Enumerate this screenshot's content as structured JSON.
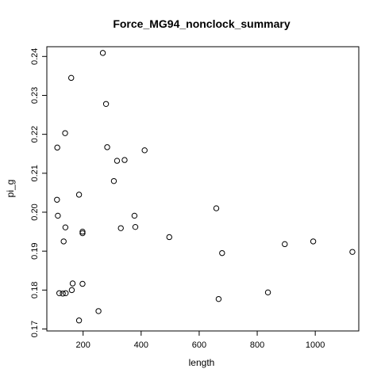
{
  "chart_data": {
    "type": "scatter",
    "title": "Force_MG94_nonclock_summary",
    "xlabel": "length",
    "ylabel": "pi_g",
    "xlim": [
      75,
      1150
    ],
    "ylim": [
      0.1695,
      0.2425
    ],
    "xticks": [
      200,
      400,
      600,
      800,
      1000
    ],
    "yticks": [
      0.17,
      0.18,
      0.19,
      0.2,
      0.21,
      0.22,
      0.23,
      0.24
    ],
    "ytick_labels": [
      "0.17",
      "0.18",
      "0.19",
      "0.20",
      "0.21",
      "0.22",
      "0.23",
      "0.24"
    ],
    "grid": false,
    "legend": "none",
    "colors": {
      "point_stroke": "#000000",
      "axis": "#000000"
    },
    "points": [
      {
        "x": 268,
        "y": 0.2409
      },
      {
        "x": 159,
        "y": 0.2345
      },
      {
        "x": 279,
        "y": 0.2278
      },
      {
        "x": 138,
        "y": 0.2203
      },
      {
        "x": 111,
        "y": 0.2166
      },
      {
        "x": 283,
        "y": 0.2167
      },
      {
        "x": 412,
        "y": 0.2159
      },
      {
        "x": 317,
        "y": 0.2132
      },
      {
        "x": 343,
        "y": 0.2134
      },
      {
        "x": 306,
        "y": 0.208
      },
      {
        "x": 110,
        "y": 0.2032
      },
      {
        "x": 186,
        "y": 0.2045
      },
      {
        "x": 113,
        "y": 0.1991
      },
      {
        "x": 377,
        "y": 0.1991
      },
      {
        "x": 659,
        "y": 0.201
      },
      {
        "x": 139,
        "y": 0.1961
      },
      {
        "x": 198,
        "y": 0.195
      },
      {
        "x": 198,
        "y": 0.1946
      },
      {
        "x": 330,
        "y": 0.1959
      },
      {
        "x": 380,
        "y": 0.1962
      },
      {
        "x": 497,
        "y": 0.1936
      },
      {
        "x": 133,
        "y": 0.1925
      },
      {
        "x": 895,
        "y": 0.1918
      },
      {
        "x": 993,
        "y": 0.1925
      },
      {
        "x": 679,
        "y": 0.1895
      },
      {
        "x": 1128,
        "y": 0.1898
      },
      {
        "x": 164,
        "y": 0.1817
      },
      {
        "x": 198,
        "y": 0.1816
      },
      {
        "x": 161,
        "y": 0.18
      },
      {
        "x": 118,
        "y": 0.1792
      },
      {
        "x": 130,
        "y": 0.1791
      },
      {
        "x": 140,
        "y": 0.1792
      },
      {
        "x": 837,
        "y": 0.1794
      },
      {
        "x": 667,
        "y": 0.1777
      },
      {
        "x": 253,
        "y": 0.1746
      },
      {
        "x": 186,
        "y": 0.1722
      }
    ]
  }
}
